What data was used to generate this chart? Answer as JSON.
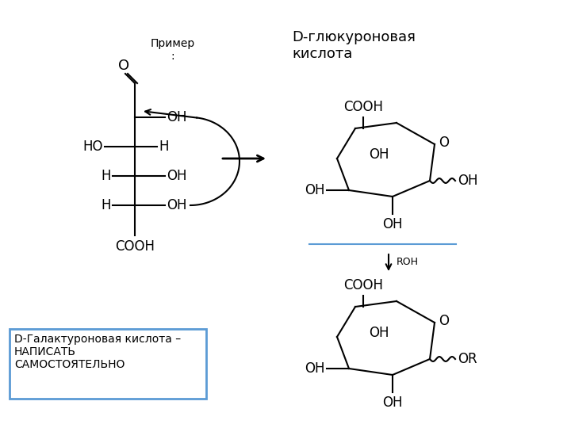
{
  "bg_color": "#ffffff",
  "title_text": "D-глюкуроновая\nкислота",
  "primer_text": "Пример\n:",
  "roh_text": "ROH",
  "box_text": "D-Галактуроновая кислота –\nНАПИСАТЬ\nСАМОСТОЯТЕЛЬНО",
  "box_color": "#5b9bd5",
  "fs": 11
}
